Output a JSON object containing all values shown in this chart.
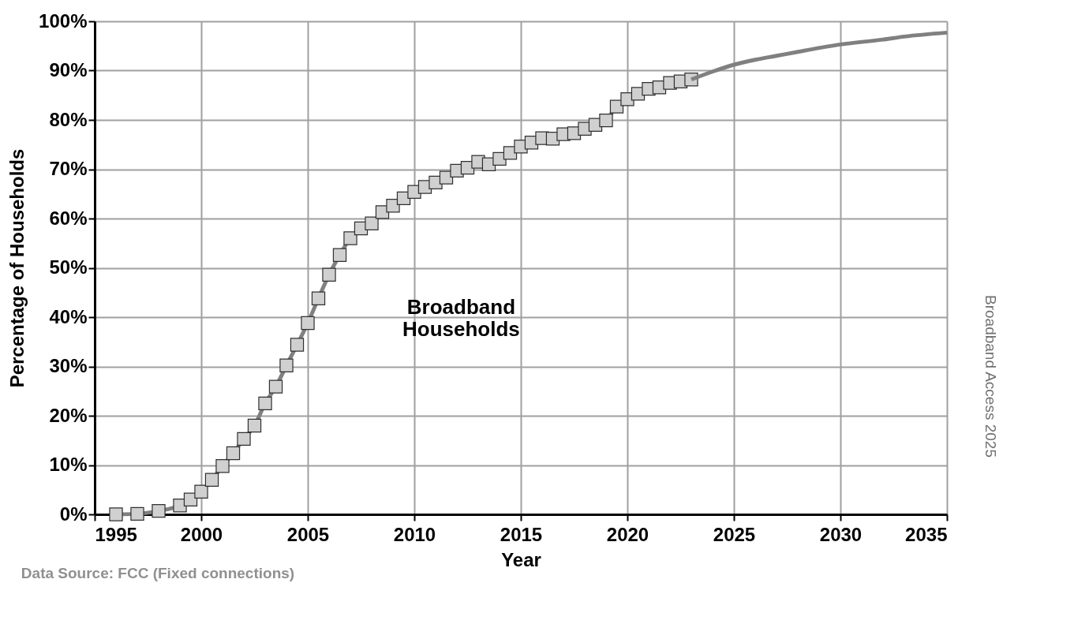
{
  "chart_data": {
    "type": "line",
    "xlabel": "Year",
    "ylabel": "Percentage of Households",
    "annotations": [
      "Broadband Households",
      "Data Source: FCC (Fixed connections)",
      "Broadband Access 2025"
    ],
    "xlim": [
      1995,
      2035
    ],
    "xticks": [
      1995,
      2000,
      2005,
      2010,
      2015,
      2020,
      2025,
      2030,
      2035
    ],
    "ylim": [
      0,
      100
    ],
    "yticks": [
      {
        "value": 0,
        "label": "0%"
      },
      {
        "value": 10,
        "label": "10%"
      },
      {
        "value": 20,
        "label": "20%"
      },
      {
        "value": 30,
        "label": "30%"
      },
      {
        "value": 40,
        "label": "40%"
      },
      {
        "value": 50,
        "label": "50%"
      },
      {
        "value": 60,
        "label": "60%"
      },
      {
        "value": 70,
        "label": "70%"
      },
      {
        "value": 80,
        "label": "80%"
      },
      {
        "value": 90,
        "label": "90%"
      },
      {
        "value": 100,
        "label": "100%"
      }
    ],
    "grid": true,
    "line_style": "solid",
    "series": [
      {
        "color": "#808080",
        "marker": "square",
        "x": [
          1996,
          1997,
          1998,
          1999,
          1999.5,
          2000,
          2000.5,
          2001,
          2001.5,
          2002,
          2002.5,
          2003,
          2003.5,
          2004,
          2004.5,
          2005,
          2005.5,
          2006,
          2006.5,
          2007,
          2007.5,
          2008,
          2008.5,
          2009,
          2009.5,
          2010,
          2010.5,
          2011,
          2011.5,
          2012,
          2012.5,
          2013,
          2013.5,
          2014,
          2014.5,
          2015,
          2015.5,
          2016,
          2016.5,
          2017,
          2017.5,
          2018,
          2018.5,
          2019,
          2019.5,
          2020,
          2020.5,
          2021,
          2021.5,
          2022,
          2022.5,
          2023
        ],
        "values": [
          0,
          0.1,
          0.7,
          1.8,
          3,
          4.6,
          7,
          9.8,
          12.4,
          15.3,
          18,
          22.5,
          25.9,
          30.2,
          34.4,
          38.8,
          43.8,
          48.6,
          52.6,
          56,
          58,
          59,
          61.3,
          62.6,
          64.1,
          65.4,
          66.4,
          67.3,
          68.3,
          69.7,
          70.3,
          71.5,
          71,
          72.1,
          73.3,
          74.6,
          75.4,
          76.3,
          76.2,
          77.1,
          77.3,
          78.2,
          79,
          79.9,
          82.7,
          84.2,
          85.3,
          86.3,
          86.6,
          87.5,
          87.8,
          88.2
        ]
      },
      {
        "color": "#808080",
        "marker": "none",
        "x": [
          2023,
          2024,
          2025,
          2026,
          2027,
          2028,
          2030,
          2032,
          2033,
          2035
        ],
        "values": [
          88.2,
          89.8,
          91.2,
          92.2,
          93,
          93.8,
          95.3,
          96.3,
          96.9,
          97.7
        ]
      }
    ]
  }
}
